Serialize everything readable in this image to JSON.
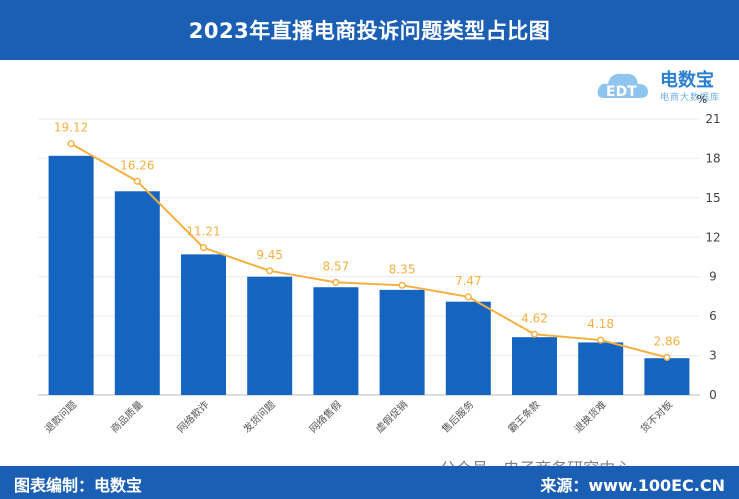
{
  "title": "2023年直播电商投诉问题类型占比图",
  "logo": {
    "name": "电数宝",
    "sub": "电商大数据库",
    "mark": "EDT"
  },
  "chart_data": {
    "type": "bar",
    "unit_label": "%",
    "categories": [
      "退款问题",
      "商品质量",
      "网络欺诈",
      "发货问题",
      "网络售假",
      "虚假促销",
      "售后服务",
      "霸王条款",
      "退换货难",
      "货不对板"
    ],
    "series": [
      {
        "type": "bar",
        "values": [
          18.2,
          15.5,
          10.7,
          9.0,
          8.2,
          8.0,
          7.1,
          4.4,
          4.0,
          2.8
        ]
      },
      {
        "type": "line",
        "values": [
          19.12,
          16.26,
          11.21,
          9.45,
          8.57,
          8.35,
          7.47,
          4.62,
          4.18,
          2.86
        ]
      }
    ],
    "y_ticks": [
      0,
      3,
      6,
      9,
      12,
      15,
      18,
      21
    ],
    "ylim": [
      0,
      21
    ],
    "colors": {
      "bar": "#1565c0",
      "line": "#f5b041"
    }
  },
  "footer": {
    "left": "图表编制：电数宝",
    "right": "来源：www.100EC.CN"
  },
  "watermark": "公众号 · 电子商务研究中心"
}
